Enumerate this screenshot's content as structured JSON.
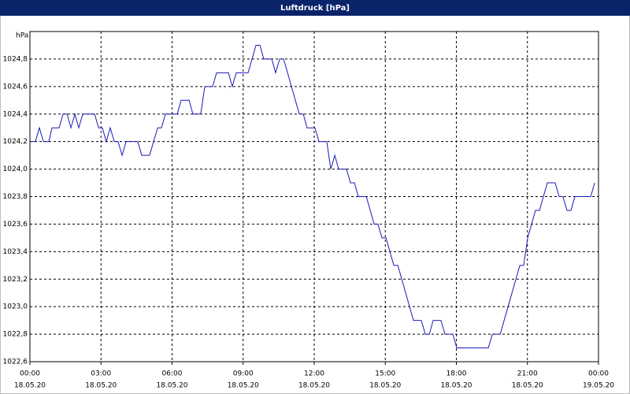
{
  "chart_data": {
    "type": "line",
    "title": "Luftdruck [hPa]",
    "y_label": "hPa",
    "series": [
      {
        "name": "Luftdruck",
        "color": "#1a1ab4",
        "x": [
          0,
          0.23,
          0.4,
          0.57,
          0.8,
          0.93,
          1.23,
          1.4,
          1.57,
          1.73,
          1.9,
          2.06,
          2.23,
          2.73,
          2.9,
          3.06,
          3.22,
          3.39,
          3.56,
          3.72,
          3.89,
          4.06,
          4.55,
          4.72,
          5.05,
          5.39,
          5.55,
          5.72,
          6.22,
          6.38,
          6.72,
          6.88,
          7.21,
          7.38,
          7.71,
          7.88,
          8.38,
          8.54,
          8.71,
          9.21,
          9.54,
          9.71,
          9.87,
          10.21,
          10.37,
          10.54,
          10.71,
          11.37,
          11.54,
          11.7,
          12.03,
          12.2,
          12.53,
          12.7,
          12.87,
          13.03,
          13.36,
          13.53,
          13.7,
          13.86,
          14.2,
          14.53,
          14.69,
          14.86,
          15.03,
          15.36,
          15.53,
          16.19,
          16.52,
          16.69,
          16.86,
          17.02,
          17.35,
          17.52,
          17.85,
          18.02,
          19.35,
          19.52,
          19.85,
          20.68,
          20.84,
          21.01,
          21.34,
          21.51,
          21.84,
          22.17,
          22.34,
          22.5,
          22.67,
          22.84,
          23.0,
          23.67,
          23.84
        ],
        "values": [
          1024.2,
          1024.2,
          1024.3,
          1024.2,
          1024.2,
          1024.3,
          1024.3,
          1024.4,
          1024.4,
          1024.3,
          1024.4,
          1024.3,
          1024.4,
          1024.4,
          1024.3,
          1024.3,
          1024.2,
          1024.3,
          1024.2,
          1024.2,
          1024.1,
          1024.2,
          1024.2,
          1024.1,
          1024.1,
          1024.3,
          1024.3,
          1024.4,
          1024.4,
          1024.5,
          1024.5,
          1024.4,
          1024.4,
          1024.6,
          1024.6,
          1024.7,
          1024.7,
          1024.6,
          1024.7,
          1024.7,
          1024.9,
          1024.9,
          1024.8,
          1024.8,
          1024.7,
          1024.8,
          1024.8,
          1024.4,
          1024.4,
          1024.3,
          1024.3,
          1024.2,
          1024.2,
          1024.0,
          1024.1,
          1024.0,
          1024.0,
          1023.9,
          1023.9,
          1023.8,
          1023.8,
          1023.6,
          1023.6,
          1023.5,
          1023.5,
          1023.3,
          1023.3,
          1022.9,
          1022.9,
          1022.8,
          1022.8,
          1022.9,
          1022.9,
          1022.8,
          1022.8,
          1022.7,
          1022.7,
          1022.8,
          1022.8,
          1023.3,
          1023.3,
          1023.5,
          1023.7,
          1023.7,
          1023.9,
          1023.9,
          1023.8,
          1023.8,
          1023.7,
          1023.7,
          1023.8,
          1023.8,
          1023.9
        ]
      }
    ],
    "xlim": [
      0,
      24
    ],
    "xticks": [
      {
        "value": 0,
        "label": "00:00",
        "date": "18.05.20"
      },
      {
        "value": 3,
        "label": "03:00",
        "date": "18.05.20"
      },
      {
        "value": 6,
        "label": "06:00",
        "date": "18.05.20"
      },
      {
        "value": 9,
        "label": "09:00",
        "date": "18.05.20"
      },
      {
        "value": 12,
        "label": "12:00",
        "date": "18.05.20"
      },
      {
        "value": 15,
        "label": "15:00",
        "date": "18.05.20"
      },
      {
        "value": 18,
        "label": "18:00",
        "date": "18.05.20"
      },
      {
        "value": 21,
        "label": "21:00",
        "date": "18.05.20"
      },
      {
        "value": 24,
        "label": "00:00",
        "date": "19.05.20"
      }
    ],
    "ylim": [
      1022.6,
      1025.0
    ],
    "yticks": [
      {
        "value": 1022.6,
        "label": "1022,6"
      },
      {
        "value": 1022.8,
        "label": "1022,8"
      },
      {
        "value": 1023.0,
        "label": "1023,0"
      },
      {
        "value": 1023.2,
        "label": "1023,2"
      },
      {
        "value": 1023.4,
        "label": "1023,4"
      },
      {
        "value": 1023.6,
        "label": "1023,6"
      },
      {
        "value": 1023.8,
        "label": "1023,8"
      },
      {
        "value": 1024.0,
        "label": "1024,0"
      },
      {
        "value": 1024.2,
        "label": "1024,2"
      },
      {
        "value": 1024.4,
        "label": "1024,4"
      },
      {
        "value": 1024.6,
        "label": "1024,6"
      },
      {
        "value": 1024.8,
        "label": "1024,8"
      }
    ],
    "grid": true
  }
}
